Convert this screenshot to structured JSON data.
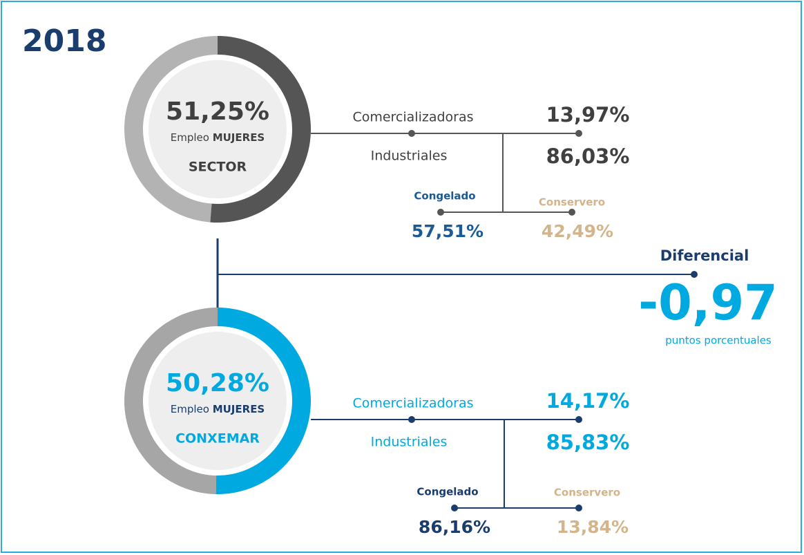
{
  "title": "2018",
  "panels": [
    {
      "donut": {
        "value": 51.25,
        "label": "51,25%"
      },
      "color": "#555555",
      "rest_color": "#b3b3b3",
      "caption": "Empleo",
      "caption_bold": "MUJERES",
      "name": "SECTOR",
      "branches": [
        {
          "name": "Comercializadoras",
          "share": "13,97%"
        },
        {
          "name": "Industriales",
          "share": "86,03%"
        }
      ],
      "sub": [
        {
          "name": "Congelado",
          "share": "57,51%"
        },
        {
          "name": "Conservero",
          "share": "42,49%"
        }
      ]
    },
    {
      "donut": {
        "value": 50.28,
        "label": "50,28%"
      },
      "color": "#00a9e0",
      "rest_color": "#a6a6a6",
      "caption": "Empleo",
      "caption_bold": "MUJERES",
      "name": "CONXEMAR",
      "branches": [
        {
          "name": "Comercializadoras",
          "share": "14,17%"
        },
        {
          "name": "Industriales",
          "share": "85,83%"
        }
      ],
      "sub": [
        {
          "name": "Congelado",
          "share": "86,16%"
        },
        {
          "name": "Conservero",
          "share": "13,84%"
        }
      ]
    }
  ],
  "differential": {
    "title": "Diferencial",
    "value": "-0,97",
    "unit": "puntos porcentuales"
  }
}
